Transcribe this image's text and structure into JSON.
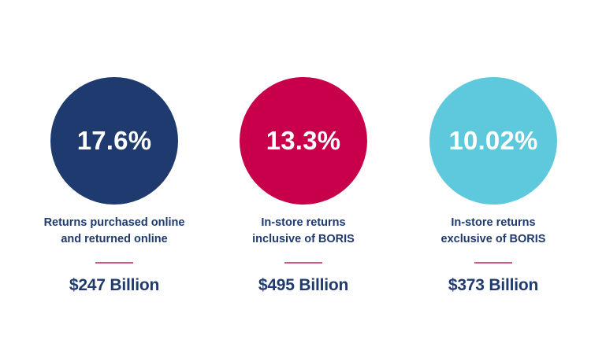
{
  "colors": {
    "circle_1": "#1e3a6e",
    "circle_2": "#c8004b",
    "circle_3": "#5ec8dc",
    "text": "#1f3a6e",
    "divider": "#d4547a"
  },
  "stats": [
    {
      "percent": "17.6%",
      "label_line1": "Returns purchased online",
      "label_line2": "and returned online",
      "amount": "$247 Billion"
    },
    {
      "percent": "13.3%",
      "label_line1": "In-store returns",
      "label_line2": "inclusive of BORIS",
      "amount": "$495 Billion"
    },
    {
      "percent": "10.02%",
      "label_line1": "In-store returns",
      "label_line2": "exclusive of BORIS",
      "amount": "$373 Billion"
    }
  ]
}
